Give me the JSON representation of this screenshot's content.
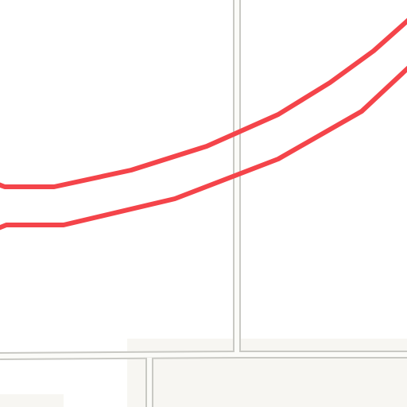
{
  "map": {
    "style": {
      "land_color": "#ffffff",
      "lot_fill_color": "#f7f6f2",
      "street_fill_color": "#fbfbf8",
      "street_casing_color": "#c9c9c4",
      "route_color": "#f4444a"
    },
    "route": {
      "name_visible": false,
      "lines": [
        "upper-route-line",
        "lower-route-line"
      ]
    }
  }
}
